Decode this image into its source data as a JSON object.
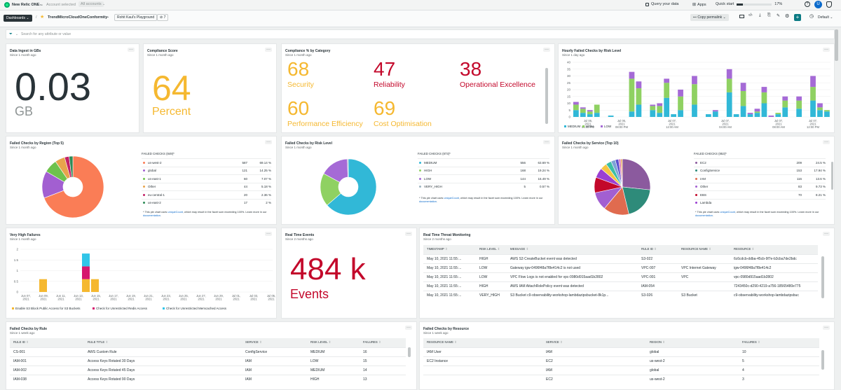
{
  "topbar": {
    "brand": "New Relic ONE",
    "brand_tm": "™",
    "account_label": "Account selected",
    "account_value": "All accounts",
    "query": "Query your data",
    "apps": "Apps",
    "quickstart": "Quick start",
    "quickstart_progress": 0.17,
    "quickstart_pct": "17%"
  },
  "toolbar": {
    "dashboards": "Dashboards",
    "separator": "/",
    "title": "TrendMicroCloudOneConformity",
    "tag": "Rohit Kaul's Playground",
    "count": "7",
    "copy_permalink": "Copy permalink",
    "default": "Default"
  },
  "filter": {
    "placeholder": "Search for any attribute or value"
  },
  "panels": {
    "ingest": {
      "title": "Data Ingest in GBs",
      "sub": "Since 1 month ago",
      "value": "0.03",
      "unit": "GB"
    },
    "score": {
      "title": "Compliance Score",
      "sub": "Since 1 month ago",
      "value": "64",
      "unit": "Percent"
    },
    "cat": {
      "title": "Compliance % by Category",
      "sub": "Since 1 month ago",
      "items": [
        {
          "value": "68",
          "label": "Security",
          "color": "#f5b830"
        },
        {
          "value": "47",
          "label": "Reliability",
          "color": "#c3082b"
        },
        {
          "value": "38",
          "label": "Operational Excellence",
          "color": "#c3082b"
        },
        {
          "value": "60",
          "label": "Performance Efficiency",
          "color": "#f5b830"
        },
        {
          "value": "69",
          "label": "Cost Optimisation",
          "color": "#f5b830"
        }
      ]
    },
    "hourly": {
      "title": "Hourly Failed Checks by Risk Level",
      "sub": "Since 1 day ago",
      "yticks": [
        "40",
        "35",
        "30",
        "25",
        "20",
        "15",
        "10",
        "5",
        "0"
      ],
      "xticks": [
        "Jul 06,\n2021\n04:00 PM",
        "Jul 06,\n2021\n08:00 PM",
        "Jul 07,\n2021\n12:00 AM",
        "Jul 07,\n2021\n04:00 AM",
        "Jul 07,\n2021\n08:00 AM",
        "Jul 07,\n2021\n12:00 PM"
      ],
      "legend": [
        {
          "name": "MEDIUM",
          "color": "#31b8d7"
        },
        {
          "name": "HIGH",
          "color": "#8fd162"
        },
        {
          "name": "LOW",
          "color": "#a56ad6"
        }
      ]
    },
    "region": {
      "title": "Failed Checks by Region (Top 5)",
      "sub": "Since 1 month ago",
      "header": "FAILED CHECKS (849)*",
      "rows": [
        {
          "name": "us-west-2",
          "count": "587",
          "pct": "69.14 %",
          "color": "#fa7d56"
        },
        {
          "name": "global",
          "count": "121",
          "pct": "14.25 %",
          "color": "#a25fd1"
        },
        {
          "name": "us-east-1",
          "count": "60",
          "pct": "7.07 %",
          "color": "#6ec24c"
        },
        {
          "name": "Other",
          "count": "44",
          "pct": "5.18 %",
          "color": "#e8a44c"
        },
        {
          "name": "eu-central-1",
          "count": "20",
          "pct": "2.36 %",
          "color": "#c22066"
        },
        {
          "name": "us-east-2",
          "count": "17",
          "pct": "2 %",
          "color": "#2e8b57"
        }
      ],
      "note_pre": "* This pie chart uses ",
      "note_link": "uniqueCount",
      "note_mid": ", which may result in the facet sum exceeding 100%. Learn more in our ",
      "note_link2": "documentation",
      "note_end": "."
    },
    "risk": {
      "title": "Failed Checks by Risk Level",
      "sub": "Since 1 month ago",
      "header": "FAILED CHECKS (873)*",
      "rows": [
        {
          "name": "MEDIUM",
          "count": "556",
          "pct": "63.69 %",
          "color": "#31b8d7"
        },
        {
          "name": "HIGH",
          "count": "168",
          "pct": "19.24 %",
          "color": "#8fd162"
        },
        {
          "name": "LOW",
          "count": "144",
          "pct": "16.49 %",
          "color": "#a56ad6"
        },
        {
          "name": "VERY_HIGH",
          "count": "5",
          "pct": "0.57 %",
          "color": "#9db4c0"
        }
      ],
      "note_pre": "* This pie chart uses ",
      "note_link": "uniqueCount",
      "note_mid": ", which may result in the facet sum exceeding 100%. Learn more in our ",
      "note_link2": "documentation",
      "note_end": "."
    },
    "service": {
      "title": "Failed Checks by Service (Top 10)",
      "sub": "Since 1 month ago",
      "header": "FAILED CHECKS (853)*",
      "rows": [
        {
          "name": "EC2",
          "count": "209",
          "pct": "24.5 %",
          "color": "#8b5a9e"
        },
        {
          "name": "ConfigService",
          "count": "153",
          "pct": "17.94 %",
          "color": "#2e8b7a"
        },
        {
          "name": "IAM",
          "count": "116",
          "pct": "13.6 %",
          "color": "#e06b4f"
        },
        {
          "name": "Other",
          "count": "83",
          "pct": "9.73 %",
          "color": "#a25fd1"
        },
        {
          "name": "EBS",
          "count": "70",
          "pct": "8.21 %",
          "color": "#c3082b"
        },
        {
          "name": "Lambda",
          "count": "",
          "pct": "",
          "color": "#9b3fd1"
        }
      ],
      "note_pre": "* This pie chart uses ",
      "note_link": "uniqueCount",
      "note_mid": ", which may result in the facet sum exceeding 100%. Learn more in our ",
      "note_link2": "documentation",
      "note_end": "."
    },
    "veryhigh": {
      "title": "Very High Failures",
      "sub": "Since 1 month ago",
      "yticks": [
        "2",
        "1.5",
        "1",
        "0.5",
        "0"
      ],
      "xticks": [
        "Jun 07,\n2021",
        "Jun 09,\n2021",
        "Jun 11,\n2021",
        "Jun 13,\n2021",
        "Jun 15,\n2021",
        "Jun 17,\n2021",
        "Jun 19,\n2021",
        "Jun 21,\n2021",
        "Jun 23,\n2021",
        "Jun 25,\n2021",
        "Jun 27,\n2021",
        "Jun 29,\n2021",
        "Jul 01,\n2021",
        "Jul 03,\n2021",
        "Jul 05,\n2021"
      ],
      "legend": [
        {
          "name": "Enable S3 Block Public Access for S3 Buckets",
          "color": "#f5b830"
        },
        {
          "name": "Check for Unrestricted Redis Access",
          "color": "#d6166e"
        },
        {
          "name": "Check for Unrestricted Memcached Access",
          "color": "#31c5e8"
        }
      ]
    },
    "rte": {
      "title": "Real Time Events",
      "sub": "Since 2 months ago",
      "value": "484 k",
      "unit": "Events"
    },
    "threat": {
      "title": "Real Time Threat Monitoring",
      "sub": "Since 2 months ago",
      "headers": [
        "TIMESTAMP",
        "RISK LEVEL",
        "MESSAGE",
        "RULE ID",
        "RESOURCE NAME",
        "RESOURCE"
      ],
      "rows": [
        [
          "May 10, 2021 11:55:...",
          "HIGH",
          "AWS S3 CreateBucket event was detected",
          "S3-022",
          "",
          "6c6cdcb-ddba-45cb-9f7e-b3cba7de2bdc"
        ],
        [
          "May 10, 2021 11:55:...",
          "LOW",
          "Gateway igw-0496f48a7f8e414c2 is not used",
          "VPC-007",
          "VPC Internet Gateway",
          "igw-0496f48a7f8e414c2"
        ],
        [
          "May 10, 2021 11:55:...",
          "LOW",
          "VPC Flow Logs is not enabled for vpc-0980d915aad1b2802",
          "VPC-001",
          "VPC",
          "vpc-0980d915aad1b2802"
        ],
        [
          "May 10, 2021 11:55:...",
          "HIGH",
          "AWS IAM AttachRolePolicy event was detected",
          "IAM-054",
          "",
          "7243450c-d290-4219-a756-18565480e775"
        ],
        [
          "May 10, 2021 11:55:...",
          "VERY_HIGH",
          "S3 Bucket c9-observability-workshop-lambdazipsbucket-8k1p...",
          "S3-026",
          "S3 Bucket",
          "c9-observability-workshop-lambdazipsbuc"
        ]
      ]
    },
    "rule": {
      "title": "Failed Checks by Rule",
      "sub": "Since 1 week ago",
      "headers": [
        "RULE ID",
        "RULE TITLE",
        "SERVICE",
        "RISK LEVEL",
        "FAILURES"
      ],
      "rows": [
        [
          "CS-001",
          "AWS Custom Rule",
          "ConfigService",
          "MEDIUM",
          "16"
        ],
        [
          "IAM-001",
          "Access Keys Rotated 30 Days",
          "IAM",
          "LOW",
          "15"
        ],
        [
          "IAM-002",
          "Access Keys Rotated 45 Days",
          "IAM",
          "MEDIUM",
          "14"
        ],
        [
          "IAM-038",
          "Access Keys Rotated 90 Days",
          "IAM",
          "HIGH",
          "13"
        ]
      ]
    },
    "resource": {
      "title": "Failed Checks by Resource",
      "sub": "Since 1 week ago",
      "headers": [
        "RESOURCE NAME",
        "SERVICE",
        "REGION",
        "FAILURES"
      ],
      "rows": [
        [
          "IAM User",
          "IAM",
          "global",
          "10"
        ],
        [
          "EC2 Instance",
          "EC2",
          "us-west-2",
          "5"
        ],
        [
          "",
          "IAM",
          "global",
          "4"
        ],
        [
          "",
          "EC2",
          "us-west-2",
          "3"
        ]
      ]
    }
  }
}
